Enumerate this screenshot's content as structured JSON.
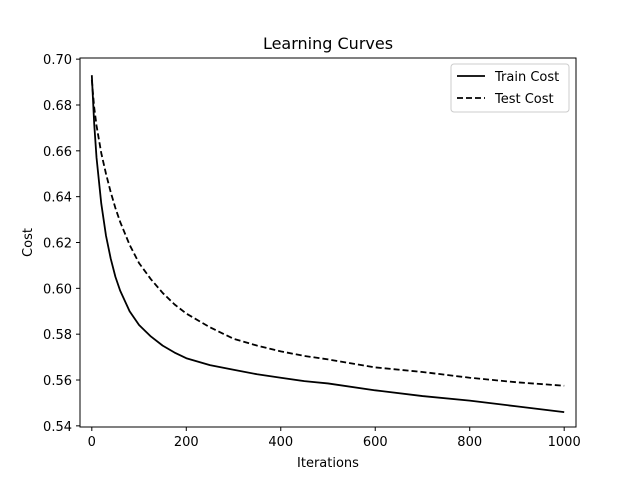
{
  "chart_data": {
    "type": "line",
    "title": "Learning Curves",
    "xlabel": "Iterations",
    "ylabel": "Cost",
    "xlim": [
      -25,
      1025
    ],
    "ylim": [
      0.5395,
      0.7005
    ],
    "xticks": [
      0,
      200,
      400,
      600,
      800,
      1000
    ],
    "xtick_labels": [
      "0",
      "200",
      "400",
      "600",
      "800",
      "1000"
    ],
    "yticks": [
      0.54,
      0.56,
      0.58,
      0.6,
      0.62,
      0.64,
      0.66,
      0.68,
      0.7
    ],
    "ytick_labels": [
      "0.54",
      "0.56",
      "0.58",
      "0.60",
      "0.62",
      "0.64",
      "0.66",
      "0.68",
      "0.70"
    ],
    "grid": false,
    "legend_position": "top-right",
    "series": [
      {
        "name": "Train Cost",
        "style": "solid",
        "color": "#000000",
        "x": [
          0,
          5,
          10,
          20,
          30,
          40,
          50,
          60,
          80,
          100,
          125,
          150,
          175,
          200,
          250,
          300,
          350,
          400,
          450,
          500,
          600,
          700,
          800,
          900,
          1000
        ],
        "y": [
          0.693,
          0.672,
          0.657,
          0.637,
          0.623,
          0.613,
          0.605,
          0.599,
          0.59,
          0.584,
          0.579,
          0.575,
          0.572,
          0.5695,
          0.5665,
          0.5645,
          0.5625,
          0.561,
          0.5595,
          0.5585,
          0.5555,
          0.553,
          0.551,
          0.5485,
          0.546
        ]
      },
      {
        "name": "Test Cost",
        "style": "dashed",
        "color": "#000000",
        "x": [
          0,
          5,
          10,
          20,
          30,
          40,
          50,
          60,
          80,
          100,
          125,
          150,
          175,
          200,
          250,
          300,
          350,
          400,
          450,
          500,
          600,
          700,
          800,
          900,
          1000
        ],
        "y": [
          0.691,
          0.679,
          0.671,
          0.659,
          0.65,
          0.642,
          0.635,
          0.629,
          0.619,
          0.611,
          0.604,
          0.598,
          0.593,
          0.589,
          0.583,
          0.578,
          0.575,
          0.5725,
          0.5705,
          0.569,
          0.5655,
          0.5635,
          0.561,
          0.559,
          0.5575
        ]
      }
    ]
  }
}
